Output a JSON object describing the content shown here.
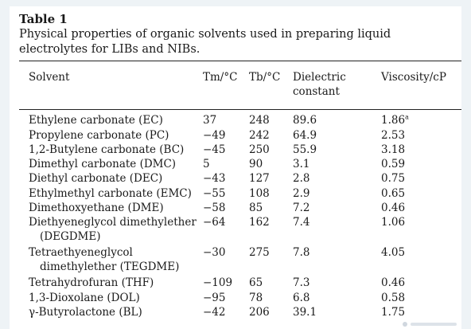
{
  "caption": {
    "label": "Table 1",
    "description": "Physical properties of organic solvents used in preparing liquid electrolytes for LIBs and NIBs."
  },
  "table": {
    "headers": {
      "solvent": "Solvent",
      "tm": "Tm/°C",
      "tb": "Tb/°C",
      "dielectric_1": "Dielectric",
      "dielectric_2": "constant",
      "viscosity": "Viscosity/cP"
    },
    "rows": [
      {
        "name": "Ethylene carbonate (EC)",
        "tm": "37",
        "tb": "248",
        "dc": "89.6",
        "visc": "1.86",
        "note": "a"
      },
      {
        "name": "Propylene carbonate (PC)",
        "tm": "−49",
        "tb": "242",
        "dc": "64.9",
        "visc": "2.53"
      },
      {
        "name": "1,2-Butylene carbonate (BC)",
        "tm": "−45",
        "tb": "250",
        "dc": "55.9",
        "visc": "3.18"
      },
      {
        "name": "Dimethyl carbonate (DMC)",
        "tm": "5",
        "tb": "90",
        "dc": "3.1",
        "visc": "0.59"
      },
      {
        "name": "Diethyl carbonate (DEC)",
        "tm": "−43",
        "tb": "127",
        "dc": "2.8",
        "visc": "0.75"
      },
      {
        "name": "Ethylmethyl carbonate (EMC)",
        "tm": "−55",
        "tb": "108",
        "dc": "2.9",
        "visc": "0.65"
      },
      {
        "name": "Dimethoxyethane (DME)",
        "tm": "−58",
        "tb": "85",
        "dc": "7.2",
        "visc": "0.46"
      },
      {
        "name": "Diethyeneglycol dimethylether",
        "name2": "(DEGDME)",
        "tm": "−64",
        "tb": "162",
        "dc": "7.4",
        "visc": "1.06"
      },
      {
        "name": "Tetraethyeneglycol",
        "name2": "dimethylether (TEGDME)",
        "tm": "−30",
        "tb": "275",
        "dc": "7.8",
        "visc": "4.05"
      },
      {
        "name": "Tetrahydrofuran (THF)",
        "tm": "−109",
        "tb": "65",
        "dc": "7.3",
        "visc": "0.46"
      },
      {
        "name": "1,3-Dioxolane (DOL)",
        "tm": "−95",
        "tb": "78",
        "dc": "6.8",
        "visc": "0.58"
      },
      {
        "name": "γ-Butyrolactone (BL)",
        "tm": "−42",
        "tb": "206",
        "dc": "39.1",
        "visc": "1.75"
      }
    ]
  }
}
